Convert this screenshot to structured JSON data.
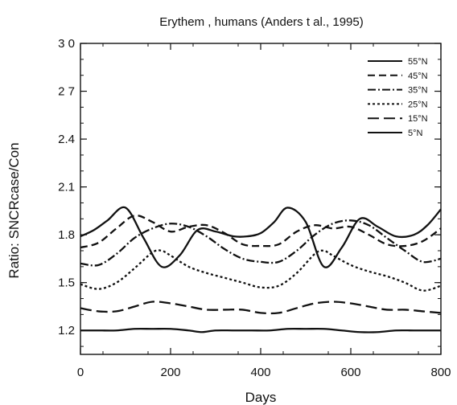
{
  "chart_data": {
    "type": "line",
    "title": "Erythem   , humans (Anders    t al., 1995)",
    "xlabel": "Days",
    "ylabel": "Ratio: SNCRcase/Con",
    "xlim": [
      0,
      800
    ],
    "ylim": [
      1.05,
      3.0
    ],
    "x_ticks": [
      0,
      200,
      400,
      600,
      800
    ],
    "y_ticks": [
      1.2,
      1.5,
      1.8,
      2.1,
      2.4,
      2.7,
      3.0
    ],
    "x_tick_labels": [
      "0",
      "200",
      "400",
      "600",
      "800"
    ],
    "y_tick_labels": [
      "1.2",
      "1.5",
      "1.8",
      "2.1",
      "2.4",
      "2 7",
      "3 0"
    ],
    "grid": false,
    "legend_position": "top-right",
    "series": [
      {
        "name": "55°N",
        "dash": "",
        "x": [
          0,
          30,
          60,
          100,
          140,
          180,
          220,
          260,
          300,
          340,
          370,
          400,
          430,
          460,
          500,
          540,
          580,
          620,
          660,
          700,
          740,
          770,
          800
        ],
        "y": [
          1.79,
          1.83,
          1.89,
          1.97,
          1.78,
          1.6,
          1.67,
          1.83,
          1.82,
          1.79,
          1.79,
          1.81,
          1.88,
          1.97,
          1.88,
          1.6,
          1.72,
          1.9,
          1.85,
          1.79,
          1.8,
          1.86,
          1.96
        ]
      },
      {
        "name": "45°N",
        "dash": "9 5",
        "x": [
          0,
          40,
          80,
          120,
          160,
          200,
          240,
          280,
          320,
          360,
          400,
          440,
          480,
          520,
          560,
          600,
          640,
          680,
          720,
          760,
          800
        ],
        "y": [
          1.72,
          1.75,
          1.84,
          1.92,
          1.88,
          1.82,
          1.85,
          1.86,
          1.81,
          1.74,
          1.73,
          1.74,
          1.82,
          1.86,
          1.84,
          1.85,
          1.8,
          1.74,
          1.73,
          1.76,
          1.84
        ]
      },
      {
        "name": "35°N",
        "dash": "10 3 2 3",
        "x": [
          0,
          40,
          80,
          120,
          160,
          200,
          240,
          280,
          320,
          360,
          400,
          440,
          480,
          520,
          560,
          600,
          640,
          680,
          720,
          760,
          800
        ],
        "y": [
          1.62,
          1.61,
          1.68,
          1.78,
          1.84,
          1.87,
          1.85,
          1.79,
          1.71,
          1.65,
          1.63,
          1.63,
          1.7,
          1.8,
          1.87,
          1.89,
          1.86,
          1.78,
          1.7,
          1.63,
          1.65
        ]
      },
      {
        "name": "25°N",
        "dash": "3 3",
        "x": [
          0,
          40,
          80,
          120,
          160,
          180,
          200,
          240,
          280,
          320,
          360,
          400,
          440,
          480,
          520,
          540,
          560,
          600,
          640,
          680,
          720,
          760,
          800
        ],
        "y": [
          1.49,
          1.46,
          1.5,
          1.59,
          1.69,
          1.7,
          1.67,
          1.6,
          1.56,
          1.53,
          1.5,
          1.47,
          1.48,
          1.56,
          1.68,
          1.7,
          1.67,
          1.61,
          1.57,
          1.54,
          1.5,
          1.45,
          1.48
        ]
      },
      {
        "name": "15°N",
        "dash": "14 6",
        "x": [
          0,
          40,
          80,
          120,
          160,
          200,
          240,
          280,
          320,
          360,
          400,
          440,
          480,
          520,
          560,
          600,
          640,
          680,
          720,
          760,
          800
        ],
        "y": [
          1.34,
          1.32,
          1.32,
          1.35,
          1.38,
          1.37,
          1.35,
          1.33,
          1.33,
          1.33,
          1.31,
          1.31,
          1.34,
          1.37,
          1.38,
          1.37,
          1.35,
          1.33,
          1.33,
          1.32,
          1.31
        ]
      },
      {
        "name": "5°N",
        "dash": "",
        "x": [
          0,
          40,
          80,
          120,
          160,
          200,
          240,
          270,
          300,
          340,
          380,
          420,
          460,
          500,
          540,
          580,
          620,
          660,
          700,
          740,
          780,
          800
        ],
        "y": [
          1.2,
          1.2,
          1.2,
          1.21,
          1.21,
          1.21,
          1.2,
          1.19,
          1.2,
          1.2,
          1.2,
          1.2,
          1.21,
          1.21,
          1.21,
          1.2,
          1.19,
          1.19,
          1.2,
          1.2,
          1.2,
          1.2
        ]
      }
    ]
  }
}
